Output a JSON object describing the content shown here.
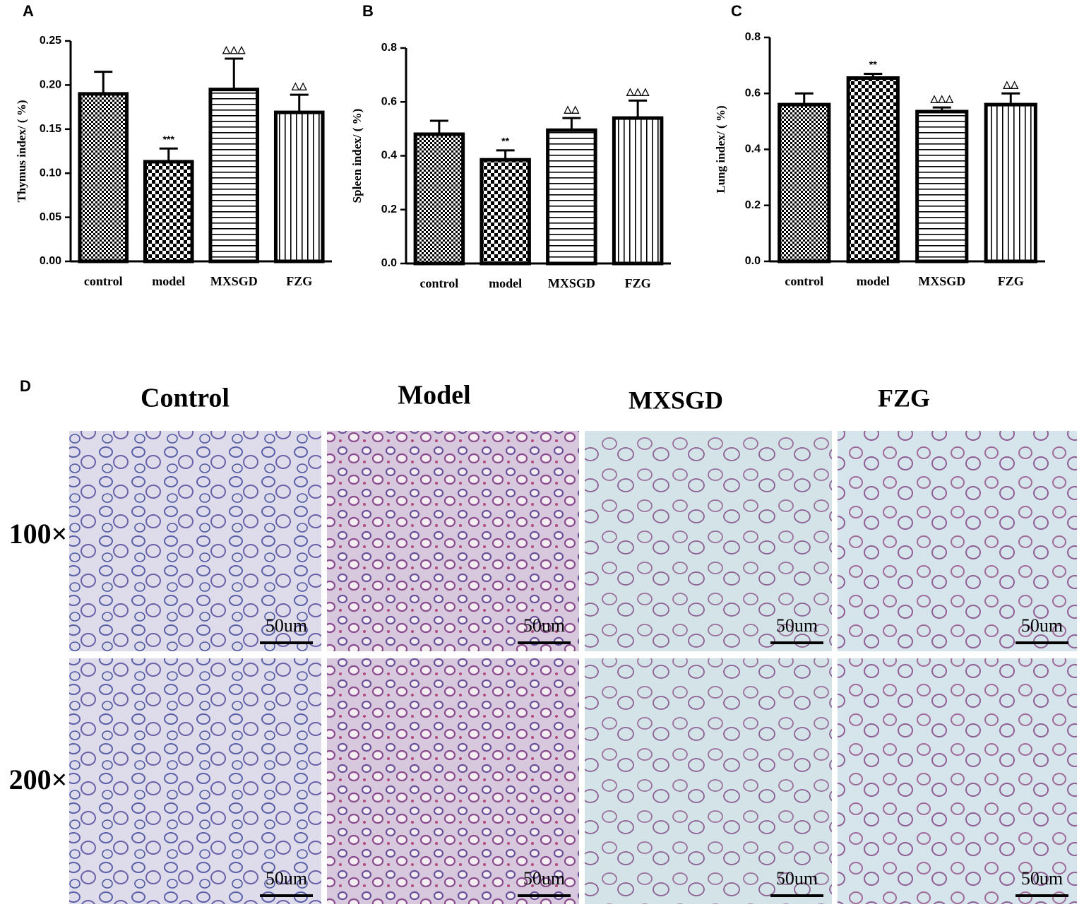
{
  "chart_data": [
    {
      "type": "bar",
      "panel": "A",
      "ylabel": "Thymus index/ ( %)",
      "categories": [
        "control",
        "model",
        "MXSGD",
        "FZG"
      ],
      "values": [
        0.19,
        0.113,
        0.195,
        0.169
      ],
      "errors": [
        0.025,
        0.015,
        0.035,
        0.02
      ],
      "annotations": [
        null,
        "***",
        "△△△",
        "△△"
      ],
      "patterns": [
        "checker-fine",
        "checker",
        "horizontal",
        "vertical"
      ],
      "color": "#000000",
      "ylim": [
        0,
        0.25
      ],
      "yticks": [
        {
          "value": 0,
          "label": "0.00"
        },
        0.05,
        {
          "value": 0.1,
          "label": "0.10"
        },
        0.15,
        {
          "value": 0.2,
          "label": "0.20"
        },
        0.25
      ]
    },
    {
      "type": "bar",
      "panel": "B",
      "ylabel": "Spleen index/ ( %)",
      "categories": [
        "control",
        "model",
        "MXSGD",
        "FZG"
      ],
      "values": [
        0.48,
        0.385,
        0.495,
        0.54
      ],
      "errors": [
        0.05,
        0.035,
        0.045,
        0.065
      ],
      "annotations": [
        null,
        "**",
        "△△",
        "△△△"
      ],
      "patterns": [
        "checker-fine",
        "checker",
        "horizontal",
        "vertical"
      ],
      "color": "#000000",
      "ylim": [
        0,
        0.8
      ],
      "yticks": [
        {
          "value": 0,
          "label": "0.0"
        },
        0.2,
        0.4,
        0.6,
        0.8
      ]
    },
    {
      "type": "bar",
      "panel": "C",
      "ylabel": "Lung index/ ( %)",
      "categories": [
        "control",
        "model",
        "MXSGD",
        "FZG"
      ],
      "values": [
        0.56,
        0.655,
        0.535,
        0.56
      ],
      "errors": [
        0.04,
        0.015,
        0.015,
        0.04
      ],
      "annotations": [
        null,
        "**",
        "△△△",
        "△△"
      ],
      "patterns": [
        "checker-fine",
        "checker",
        "horizontal",
        "vertical"
      ],
      "color": "#000000",
      "ylim": [
        0,
        0.8
      ],
      "yticks": [
        {
          "value": 0,
          "label": "0.0"
        },
        0.2,
        0.4,
        0.6,
        0.8
      ]
    }
  ],
  "histology": {
    "panel": "D",
    "columns": [
      "Control",
      "Model",
      "MXSGD",
      "FZG"
    ],
    "rows": [
      "100×",
      "200×"
    ],
    "scale_bar": "50um"
  }
}
